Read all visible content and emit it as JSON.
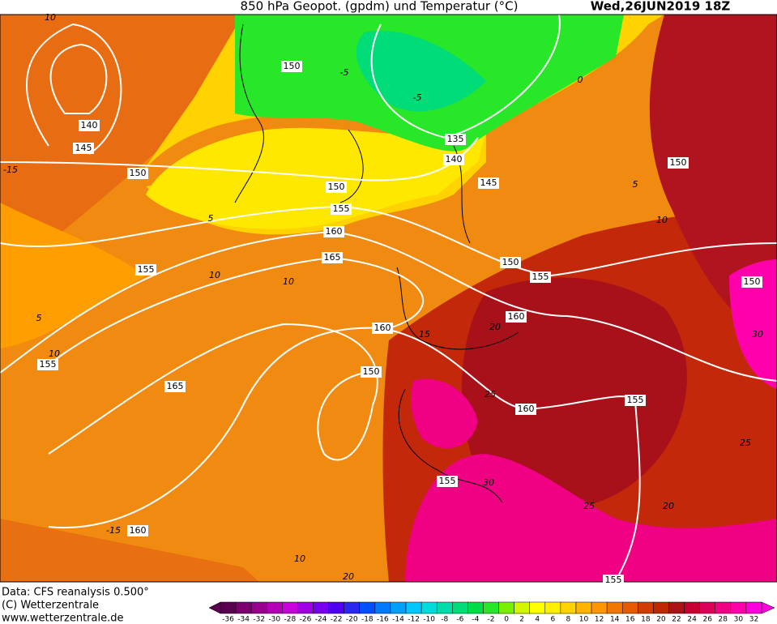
{
  "header": {
    "title": "850 hPa Geopot. (gpdm) und Temperatur (°C)",
    "date": "Wed,26JUN2019 18Z"
  },
  "footer": {
    "source": "Data: CFS reanalysis 0.500°",
    "copyright": "(C) Wetterzentrale",
    "url": "www.wetterzentrale.de"
  },
  "geopotential_labels": [
    150,
    140,
    145,
    150,
    135,
    140,
    145,
    150,
    155,
    160,
    165,
    155,
    150,
    155,
    150,
    150,
    160,
    160,
    155,
    165,
    150,
    160,
    155,
    155,
    160,
    155
  ],
  "temperature_labels": [
    10,
    -5,
    0,
    -5,
    5,
    -15,
    5,
    10,
    10,
    10,
    5,
    10,
    15,
    20,
    25,
    30,
    25,
    30,
    25,
    20,
    -15,
    10,
    20
  ],
  "colorbar": {
    "labels": [
      -36,
      -34,
      -32,
      -30,
      -28,
      -26,
      -24,
      -22,
      -20,
      -18,
      -16,
      -14,
      -12,
      -10,
      -8,
      -6,
      -4,
      -2,
      0,
      2,
      4,
      6,
      8,
      10,
      12,
      14,
      16,
      18,
      20,
      22,
      24,
      26,
      28,
      30,
      32
    ],
    "colors": [
      "#5a0050",
      "#7a006e",
      "#96008c",
      "#b400b4",
      "#c800dc",
      "#a000e6",
      "#7800f0",
      "#5000f0",
      "#2828f0",
      "#0050ff",
      "#0078ff",
      "#00a0ff",
      "#00c8ff",
      "#00dcdc",
      "#00dcaa",
      "#00dc78",
      "#00dc46",
      "#28e628",
      "#78f000",
      "#d2f500",
      "#ffff00",
      "#fff000",
      "#ffd200",
      "#ffb400",
      "#ff9600",
      "#f07800",
      "#e65a00",
      "#d23c00",
      "#be2800",
      "#aa1414",
      "#c80032",
      "#dc005a",
      "#f00082",
      "#ff00aa",
      "#ff00dc"
    ]
  }
}
